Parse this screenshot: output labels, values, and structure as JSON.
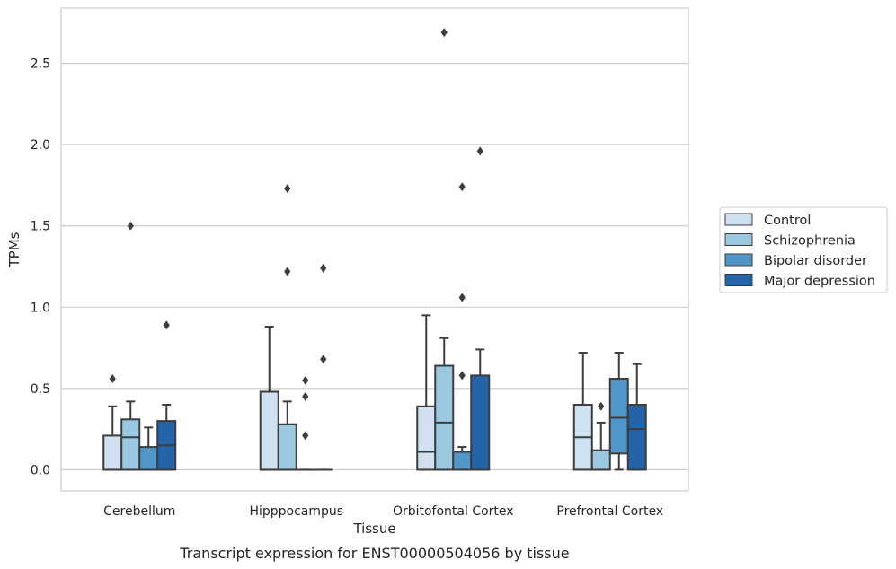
{
  "chart_data": {
    "type": "box",
    "caption": "Transcript expression for ENST00000504056 by tissue",
    "xlabel": "Tissue",
    "ylabel": "TPMs",
    "ylim": [
      -0.13,
      2.84
    ],
    "yticks": [
      0.0,
      0.5,
      1.0,
      1.5,
      2.0,
      2.5
    ],
    "ytick_labels": [
      "0.0",
      "0.5",
      "1.0",
      "1.5",
      "2.0",
      "2.5"
    ],
    "grid": "horizontal",
    "legend_position": "right",
    "categories": [
      "Cerebellum",
      "Hipppocampus",
      "Orbitofontal Cortex",
      "Prefrontal Cortex"
    ],
    "series": [
      {
        "name": "Control",
        "color": "#d0e1f2",
        "boxes": [
          {
            "whislo": 0.0,
            "q1": 0.0,
            "med": 0.0,
            "q3": 0.21,
            "whishi": 0.39,
            "fliers": [
              0.56
            ]
          },
          {
            "whislo": 0.0,
            "q1": 0.0,
            "med": 0.0,
            "q3": 0.48,
            "whishi": 0.88,
            "fliers": []
          },
          {
            "whislo": 0.0,
            "q1": 0.0,
            "med": 0.11,
            "q3": 0.39,
            "whishi": 0.95,
            "fliers": []
          },
          {
            "whislo": 0.0,
            "q1": 0.0,
            "med": 0.2,
            "q3": 0.4,
            "whishi": 0.72,
            "fliers": []
          }
        ]
      },
      {
        "name": "Schizophrenia",
        "color": "#9ac8e0",
        "boxes": [
          {
            "whislo": 0.0,
            "q1": 0.0,
            "med": 0.2,
            "q3": 0.31,
            "whishi": 0.42,
            "fliers": [
              1.5
            ]
          },
          {
            "whislo": 0.0,
            "q1": 0.0,
            "med": 0.0,
            "q3": 0.28,
            "whishi": 0.42,
            "fliers": [
              1.22,
              1.73
            ]
          },
          {
            "whislo": 0.0,
            "q1": 0.0,
            "med": 0.29,
            "q3": 0.64,
            "whishi": 0.81,
            "fliers": [
              2.69
            ]
          },
          {
            "whislo": 0.0,
            "q1": 0.0,
            "med": 0.0,
            "q3": 0.12,
            "whishi": 0.29,
            "fliers": [
              0.39
            ]
          }
        ]
      },
      {
        "name": "Bipolar disorder",
        "color": "#5096c8",
        "boxes": [
          {
            "whislo": 0.0,
            "q1": 0.0,
            "med": 0.0,
            "q3": 0.14,
            "whishi": 0.26,
            "fliers": []
          },
          {
            "whislo": 0.0,
            "q1": 0.0,
            "med": 0.0,
            "q3": 0.0,
            "whishi": 0.0,
            "fliers": [
              0.21,
              0.45,
              0.55
            ]
          },
          {
            "whislo": 0.0,
            "q1": 0.0,
            "med": 0.0,
            "q3": 0.11,
            "whishi": 0.14,
            "fliers": [
              0.58,
              1.06,
              1.74
            ]
          },
          {
            "whislo": 0.0,
            "q1": 0.1,
            "med": 0.32,
            "q3": 0.56,
            "whishi": 0.72,
            "fliers": []
          }
        ]
      },
      {
        "name": "Major depression",
        "color": "#2464a8",
        "boxes": [
          {
            "whislo": 0.0,
            "q1": 0.0,
            "med": 0.15,
            "q3": 0.3,
            "whishi": 0.4,
            "fliers": [
              0.89
            ]
          },
          {
            "whislo": 0.0,
            "q1": 0.0,
            "med": 0.0,
            "q3": 0.0,
            "whishi": 0.0,
            "fliers": [
              0.68,
              1.24
            ]
          },
          {
            "whislo": 0.0,
            "q1": 0.0,
            "med": 0.0,
            "q3": 0.58,
            "whishi": 0.74,
            "fliers": [
              1.96
            ]
          },
          {
            "whislo": 0.0,
            "q1": 0.0,
            "med": 0.25,
            "q3": 0.4,
            "whishi": 0.65,
            "fliers": []
          }
        ]
      }
    ]
  }
}
